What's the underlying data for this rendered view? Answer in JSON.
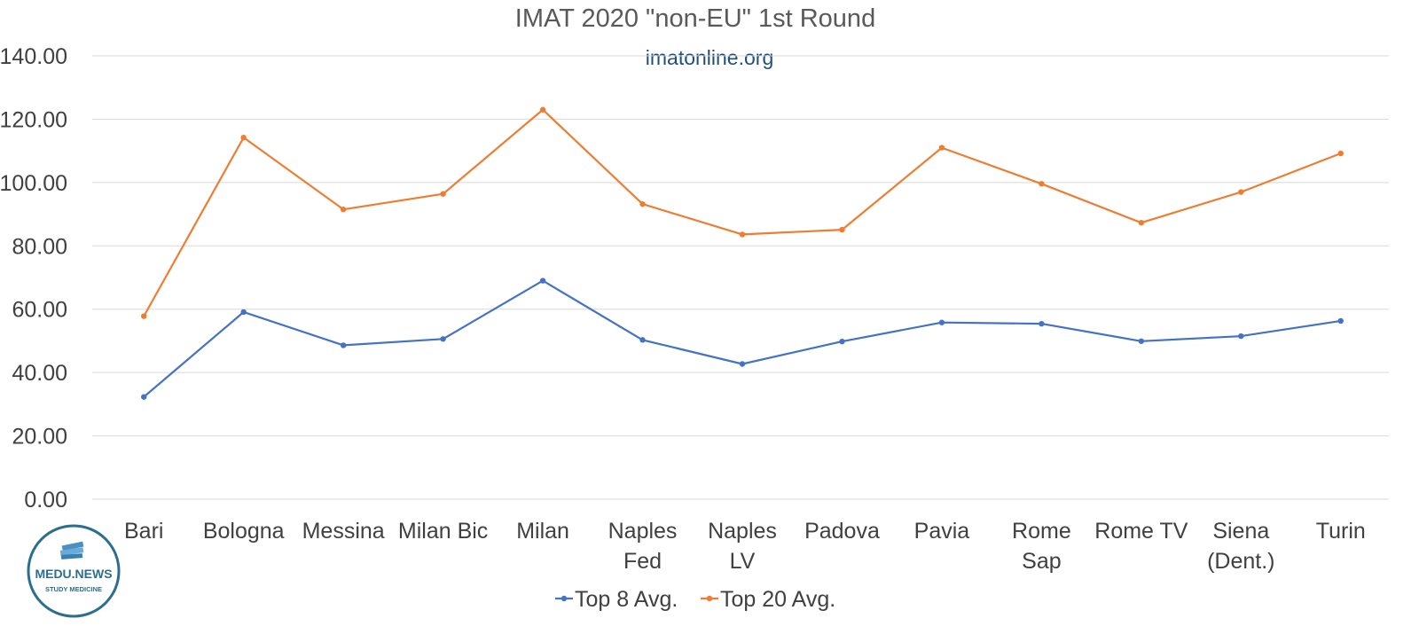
{
  "chart_data": {
    "type": "line",
    "title": "IMAT 2020 \"non-EU\" 1st Round",
    "watermark": "imatonline.org",
    "categories": [
      [
        "Bari"
      ],
      [
        "Bologna"
      ],
      [
        "Messina"
      ],
      [
        "Milan Bic"
      ],
      [
        "Milan"
      ],
      [
        "Naples",
        "Fed"
      ],
      [
        "Naples",
        "LV"
      ],
      [
        "Padova"
      ],
      [
        "Pavia"
      ],
      [
        "Rome",
        "Sap"
      ],
      [
        "Rome TV"
      ],
      [
        "Siena",
        "(Dent.)"
      ],
      [
        "Turin"
      ]
    ],
    "series": [
      {
        "name": "Top 8 Avg.",
        "color": "#4472c4",
        "values": [
          32.3,
          59.1,
          48.6,
          50.6,
          69.0,
          50.3,
          42.7,
          49.8,
          55.8,
          55.4,
          49.9,
          51.5,
          56.3
        ]
      },
      {
        "name": "Top 20 Avg.",
        "color": "#ed7d31",
        "values": [
          57.8,
          114.2,
          91.5,
          96.4,
          123.0,
          93.2,
          83.6,
          85.1,
          111.0,
          99.6,
          87.3,
          97.0,
          109.2
        ]
      }
    ],
    "ylim": [
      0,
      140
    ],
    "yticks": [
      "0.00",
      "20.00",
      "40.00",
      "60.00",
      "80.00",
      "100.00",
      "120.00",
      "140.00"
    ],
    "grid": true,
    "legend_position": "bottom"
  },
  "logo": {
    "name": "MEDU.NEWS",
    "tagline": "STUDY MEDICINE"
  }
}
